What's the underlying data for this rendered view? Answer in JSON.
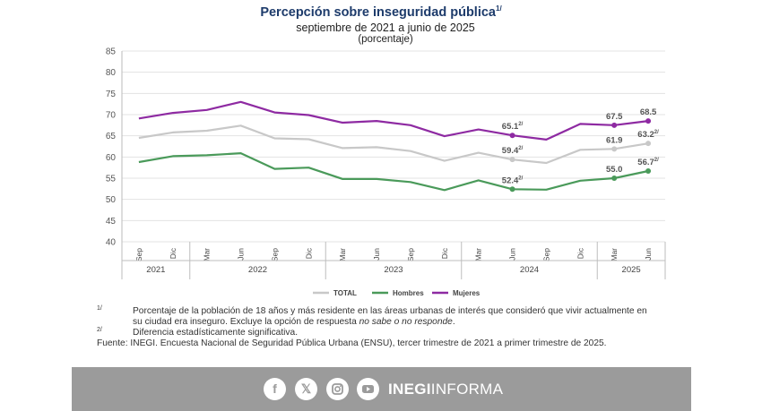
{
  "header": {
    "title": "Percepción sobre inseguridad pública",
    "title_note": "1/",
    "subtitle": "septiembre de 2021 a junio de 2025",
    "unit": "(porcentaje)"
  },
  "chart_data": {
    "type": "line",
    "categories": [
      "Sep",
      "Dic",
      "Mar",
      "Jun",
      "Sep",
      "Dic",
      "Mar",
      "Jun",
      "Sep",
      "Dic",
      "Mar",
      "Jun",
      "Sep",
      "Dic",
      "Mar",
      "Jun"
    ],
    "years": [
      {
        "label": "2021",
        "start": 0,
        "end": 1
      },
      {
        "label": "2022",
        "start": 2,
        "end": 5
      },
      {
        "label": "2023",
        "start": 6,
        "end": 9
      },
      {
        "label": "2024",
        "start": 10,
        "end": 13
      },
      {
        "label": "2025",
        "start": 14,
        "end": 15
      }
    ],
    "ylim": [
      40,
      85
    ],
    "yticks": [
      40,
      45,
      50,
      55,
      60,
      65,
      70,
      75,
      80,
      85
    ],
    "grid": true,
    "legend_position": "bottom",
    "series": [
      {
        "name": "TOTAL",
        "color": "#c8c8c8",
        "values": [
          64.5,
          65.8,
          66.2,
          67.4,
          64.4,
          64.2,
          62.1,
          62.3,
          61.4,
          59.1,
          61.0,
          59.4,
          58.6,
          61.7,
          61.9,
          63.2
        ]
      },
      {
        "name": "Hombres",
        "color": "#4a9a5a",
        "values": [
          58.8,
          60.2,
          60.4,
          60.9,
          57.2,
          57.5,
          54.8,
          54.8,
          54.1,
          52.2,
          54.5,
          52.4,
          52.3,
          54.4,
          55.0,
          56.7
        ]
      },
      {
        "name": "Mujeres",
        "color": "#8e2aa2",
        "values": [
          69.1,
          70.4,
          71.1,
          73.0,
          70.5,
          69.9,
          68.1,
          68.5,
          67.5,
          64.9,
          66.5,
          65.1,
          64.1,
          67.8,
          67.5,
          68.5
        ]
      }
    ],
    "annotations": [
      {
        "series": 2,
        "index": 11,
        "text": "65.1",
        "sup": "2/"
      },
      {
        "series": 0,
        "index": 11,
        "text": "59.4",
        "sup": "2/"
      },
      {
        "series": 1,
        "index": 11,
        "text": "52.4",
        "sup": "2/"
      },
      {
        "series": 2,
        "index": 14,
        "text": "67.5",
        "sup": ""
      },
      {
        "series": 0,
        "index": 14,
        "text": "61.9",
        "sup": ""
      },
      {
        "series": 1,
        "index": 14,
        "text": "55.0",
        "sup": ""
      },
      {
        "series": 2,
        "index": 15,
        "text": "68.5",
        "sup": ""
      },
      {
        "series": 0,
        "index": 15,
        "text": "63.2",
        "sup": "2/"
      },
      {
        "series": 1,
        "index": 15,
        "text": "56.7",
        "sup": "2/"
      }
    ]
  },
  "notes": {
    "note1_mark": "1/",
    "note1_line1": "Porcentaje de la población de 18 años y más residente en las áreas urbanas de interés que consideró que vivir actualmente en",
    "note1_line2a": "su ciudad era inseguro. Excluye la opción de respuesta ",
    "note1_line2b": "no sabe o no responde",
    "note1_line2c": ".",
    "note2_mark": "2/",
    "note2_text": "Diferencia estadísticamente significativa.",
    "source": "Fuente: INEGI. Encuesta Nacional de Seguridad Pública Urbana (ENSU), tercer trimestre de 2021 a primer trimestre de 2025."
  },
  "footer": {
    "bg_color": "#9b9b9b",
    "icons": [
      "facebook-icon",
      "x-icon",
      "instagram-icon",
      "youtube-icon"
    ],
    "brand_bold": "INEGI",
    "brand_light": "INFORMA"
  }
}
